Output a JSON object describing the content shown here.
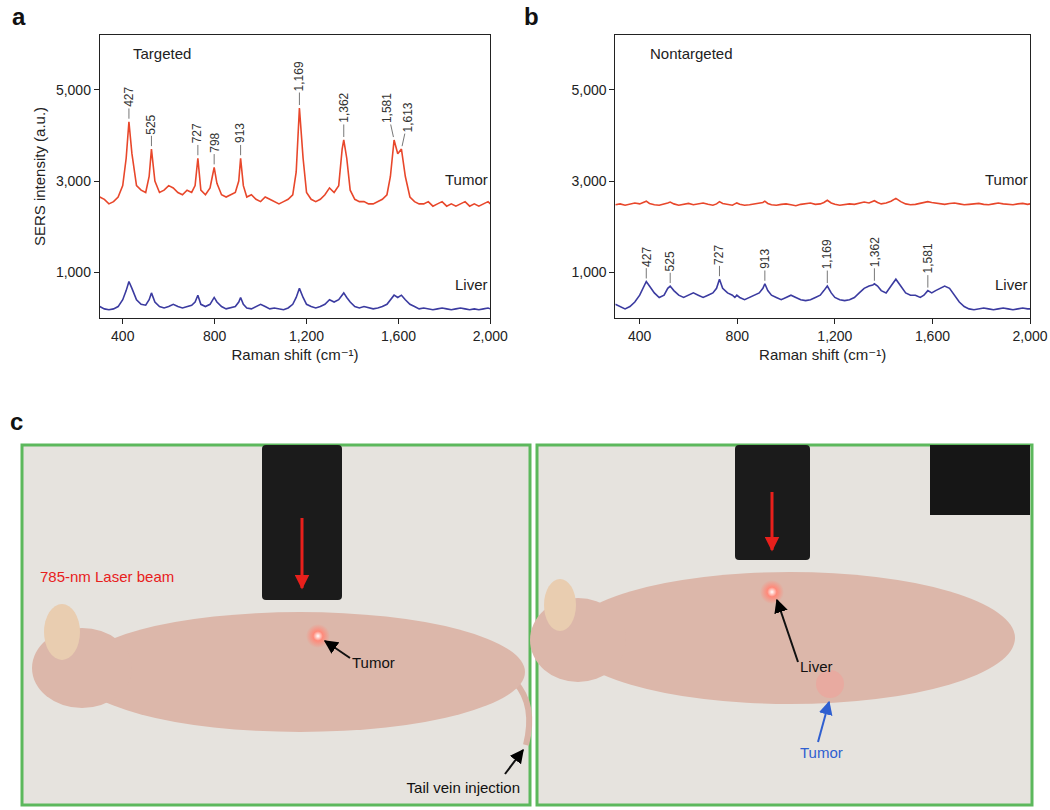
{
  "chart_data": [
    {
      "type": "line",
      "panel": "a",
      "title": "Targeted",
      "x_label": "Raman shift (cm⁻¹)",
      "y_label": "SERS intensity (a.u.)",
      "x": [
        300,
        320,
        340,
        360,
        380,
        400,
        415,
        427,
        440,
        460,
        480,
        500,
        515,
        525,
        540,
        560,
        580,
        600,
        620,
        640,
        660,
        680,
        700,
        715,
        727,
        740,
        760,
        780,
        790,
        798,
        810,
        830,
        850,
        870,
        890,
        905,
        913,
        925,
        940,
        960,
        980,
        1000,
        1020,
        1040,
        1060,
        1080,
        1100,
        1120,
        1140,
        1155,
        1169,
        1185,
        1200,
        1220,
        1240,
        1260,
        1280,
        1300,
        1320,
        1340,
        1355,
        1362,
        1375,
        1390,
        1410,
        1430,
        1450,
        1470,
        1490,
        1510,
        1530,
        1550,
        1565,
        1581,
        1597,
        1613,
        1630,
        1650,
        1670,
        1690,
        1710,
        1730,
        1750,
        1770,
        1790,
        1810,
        1830,
        1850,
        1870,
        1890,
        1910,
        1930,
        1950,
        1970,
        1990,
        2000
      ],
      "xlim": [
        300,
        2000
      ],
      "xticks": [
        400,
        800,
        {
          "value": 1200,
          "label": "1,200"
        },
        {
          "value": 1600,
          "label": "1,600"
        },
        {
          "value": 2000,
          "label": "2,000"
        }
      ],
      "ylim": [
        0,
        6200
      ],
      "yticks": [
        {
          "value": 1000,
          "label": "1,000"
        },
        {
          "value": 3000,
          "label": "3,000"
        },
        {
          "value": 5000,
          "label": "5,000"
        }
      ],
      "grid": false,
      "series": [
        {
          "name": "Tumor",
          "color": "#e8472b",
          "values": [
            2650,
            2600,
            2500,
            2550,
            2650,
            2900,
            3500,
            4300,
            3600,
            2900,
            2800,
            2750,
            3100,
            3700,
            3000,
            2750,
            2800,
            2900,
            2850,
            2750,
            2700,
            2800,
            2750,
            2900,
            3500,
            2800,
            2700,
            2850,
            3100,
            3300,
            2950,
            2700,
            2650,
            2700,
            2750,
            3000,
            3500,
            2900,
            2650,
            2700,
            2600,
            2550,
            2650,
            2600,
            2550,
            2500,
            2550,
            2600,
            2700,
            3200,
            4600,
            3500,
            2750,
            2600,
            2550,
            2600,
            2700,
            2850,
            2750,
            2900,
            3700,
            3900,
            3500,
            2800,
            2600,
            2550,
            2550,
            2500,
            2500,
            2550,
            2600,
            2700,
            3100,
            3900,
            3600,
            3700,
            3100,
            2650,
            2550,
            2500,
            2500,
            2550,
            2450,
            2500,
            2550,
            2450,
            2500,
            2450,
            2500,
            2550,
            2450,
            2500,
            2450,
            2500,
            2550,
            2500
          ],
          "peaks": [
            427,
            525,
            727,
            798,
            913,
            {
              "value": 1169,
              "label": "1,169"
            },
            {
              "value": 1362,
              "label": "1,362"
            },
            {
              "value": 1581,
              "label": "1,581"
            },
            {
              "value": 1613,
              "label": "1,613"
            }
          ]
        },
        {
          "name": "Liver",
          "color": "#3b3ba0",
          "values": [
            250,
            200,
            180,
            200,
            250,
            400,
            600,
            800,
            650,
            400,
            300,
            280,
            400,
            550,
            350,
            250,
            220,
            250,
            300,
            250,
            220,
            250,
            280,
            350,
            500,
            300,
            250,
            300,
            400,
            450,
            350,
            250,
            200,
            220,
            250,
            350,
            450,
            300,
            220,
            200,
            250,
            300,
            250,
            200,
            220,
            200,
            180,
            220,
            300,
            450,
            650,
            450,
            300,
            250,
            220,
            250,
            300,
            400,
            350,
            400,
            500,
            550,
            450,
            350,
            250,
            220,
            250,
            220,
            200,
            220,
            250,
            300,
            400,
            500,
            450,
            500,
            400,
            300,
            250,
            200,
            220,
            200,
            180,
            200,
            220,
            200,
            180,
            200,
            220,
            200,
            180,
            200,
            180,
            200,
            220,
            200
          ]
        }
      ]
    },
    {
      "type": "line",
      "panel": "b",
      "title": "Nontargeted",
      "x_label": "Raman shift (cm⁻¹)",
      "x": [
        300,
        320,
        340,
        360,
        380,
        400,
        415,
        427,
        440,
        460,
        480,
        500,
        515,
        525,
        540,
        560,
        580,
        600,
        620,
        640,
        660,
        680,
        700,
        715,
        727,
        740,
        760,
        780,
        790,
        798,
        810,
        830,
        850,
        870,
        890,
        905,
        913,
        925,
        940,
        960,
        980,
        1000,
        1020,
        1040,
        1060,
        1080,
        1100,
        1120,
        1140,
        1155,
        1169,
        1185,
        1200,
        1220,
        1240,
        1260,
        1280,
        1300,
        1320,
        1340,
        1355,
        1362,
        1375,
        1390,
        1410,
        1430,
        1450,
        1470,
        1490,
        1510,
        1530,
        1550,
        1565,
        1581,
        1597,
        1613,
        1630,
        1650,
        1670,
        1690,
        1710,
        1730,
        1750,
        1770,
        1790,
        1810,
        1830,
        1850,
        1870,
        1890,
        1910,
        1930,
        1950,
        1970,
        1990,
        2000
      ],
      "xlim": [
        300,
        2000
      ],
      "xticks": [
        400,
        800,
        {
          "value": 1200,
          "label": "1,200"
        },
        {
          "value": 1600,
          "label": "1,600"
        },
        {
          "value": 2000,
          "label": "2,000"
        }
      ],
      "ylim": [
        0,
        6200
      ],
      "yticks": [
        {
          "value": 1000,
          "label": "1,000"
        },
        {
          "value": 3000,
          "label": "3,000"
        },
        {
          "value": 5000,
          "label": "5,000"
        }
      ],
      "grid": false,
      "series": [
        {
          "name": "Tumor",
          "color": "#e8472b",
          "values": [
            2480,
            2500,
            2470,
            2490,
            2520,
            2500,
            2530,
            2560,
            2510,
            2480,
            2470,
            2490,
            2520,
            2540,
            2500,
            2470,
            2490,
            2510,
            2480,
            2500,
            2520,
            2490,
            2470,
            2500,
            2550,
            2510,
            2490,
            2470,
            2500,
            2520,
            2490,
            2470,
            2480,
            2500,
            2520,
            2530,
            2560,
            2510,
            2480,
            2470,
            2490,
            2500,
            2480,
            2460,
            2490,
            2500,
            2520,
            2490,
            2500,
            2530,
            2580,
            2520,
            2490,
            2470,
            2480,
            2500,
            2490,
            2510,
            2540,
            2520,
            2550,
            2570,
            2530,
            2500,
            2520,
            2560,
            2620,
            2550,
            2500,
            2480,
            2490,
            2510,
            2530,
            2550,
            2530,
            2520,
            2500,
            2490,
            2510,
            2520,
            2500,
            2480,
            2490,
            2500,
            2510,
            2490,
            2480,
            2500,
            2520,
            2500,
            2490,
            2480,
            2500,
            2510,
            2490,
            2500
          ]
        },
        {
          "name": "Liver",
          "color": "#3b3ba0",
          "values": [
            300,
            250,
            200,
            250,
            350,
            500,
            650,
            800,
            700,
            550,
            450,
            500,
            650,
            700,
            600,
            500,
            450,
            500,
            550,
            500,
            450,
            500,
            550,
            650,
            850,
            650,
            550,
            500,
            450,
            500,
            450,
            400,
            450,
            500,
            550,
            650,
            750,
            600,
            500,
            450,
            400,
            450,
            500,
            450,
            400,
            380,
            400,
            450,
            500,
            600,
            700,
            550,
            450,
            400,
            380,
            400,
            450,
            550,
            650,
            700,
            720,
            750,
            700,
            600,
            550,
            700,
            850,
            700,
            550,
            500,
            500,
            450,
            500,
            600,
            550,
            600,
            650,
            700,
            650,
            500,
            350,
            250,
            200,
            180,
            200,
            220,
            200,
            180,
            200,
            220,
            200,
            180,
            200,
            220,
            200,
            200
          ],
          "peaks": [
            427,
            525,
            727,
            913,
            {
              "value": 1169,
              "label": "1,169"
            },
            {
              "value": 1362,
              "label": "1,362"
            },
            {
              "value": 1581,
              "label": "1,581"
            }
          ]
        }
      ]
    }
  ],
  "panel_c": {
    "label": "c",
    "photos": [
      {
        "labels": [
          {
            "text": "785-nm Laser beam",
            "color": "red"
          },
          {
            "text": "Tumor",
            "color": "black"
          },
          {
            "text": "Tail vein injection",
            "color": "black"
          }
        ]
      },
      {
        "labels": [
          {
            "text": "Liver",
            "color": "black"
          },
          {
            "text": "Tumor",
            "color": "blue"
          }
        ]
      }
    ]
  }
}
